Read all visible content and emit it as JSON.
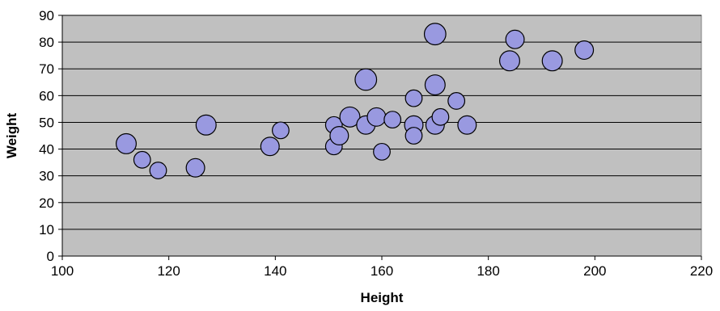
{
  "chart_data": {
    "type": "scatter",
    "xlabel": "Height",
    "ylabel": "Weight",
    "xlim": [
      100,
      220
    ],
    "ylim": [
      0,
      90
    ],
    "x_ticks": [
      100,
      120,
      140,
      160,
      180,
      200,
      220
    ],
    "y_ticks": [
      0,
      10,
      20,
      30,
      40,
      50,
      60,
      70,
      80,
      90
    ],
    "grid": "horizontal",
    "colors": {
      "plot_bg": "#c0c0c0",
      "marker_fill": "#9999e0",
      "marker_edge": "#000000",
      "grid": "#000000"
    },
    "points": [
      {
        "x": 112,
        "y": 42,
        "size": 3.0
      },
      {
        "x": 115,
        "y": 36,
        "size": 2.0
      },
      {
        "x": 118,
        "y": 32,
        "size": 2.0
      },
      {
        "x": 125,
        "y": 33,
        "size": 2.5
      },
      {
        "x": 127,
        "y": 49,
        "size": 3.0
      },
      {
        "x": 139,
        "y": 41,
        "size": 2.5
      },
      {
        "x": 141,
        "y": 47,
        "size": 2.0
      },
      {
        "x": 151,
        "y": 41,
        "size": 2.0
      },
      {
        "x": 151,
        "y": 49,
        "size": 2.0
      },
      {
        "x": 152,
        "y": 45,
        "size": 2.5
      },
      {
        "x": 154,
        "y": 52,
        "size": 3.0
      },
      {
        "x": 157,
        "y": 49,
        "size": 2.5
      },
      {
        "x": 157,
        "y": 66,
        "size": 3.5
      },
      {
        "x": 159,
        "y": 52,
        "size": 2.5
      },
      {
        "x": 160,
        "y": 39,
        "size": 2.0
      },
      {
        "x": 162,
        "y": 51,
        "size": 2.0
      },
      {
        "x": 166,
        "y": 59,
        "size": 2.0
      },
      {
        "x": 166,
        "y": 49,
        "size": 2.5
      },
      {
        "x": 166,
        "y": 45,
        "size": 2.0
      },
      {
        "x": 170,
        "y": 83,
        "size": 3.5
      },
      {
        "x": 170,
        "y": 64,
        "size": 3.0
      },
      {
        "x": 170,
        "y": 49,
        "size": 2.5
      },
      {
        "x": 171,
        "y": 52,
        "size": 2.0
      },
      {
        "x": 174,
        "y": 58,
        "size": 2.0
      },
      {
        "x": 176,
        "y": 49,
        "size": 2.5
      },
      {
        "x": 184,
        "y": 73,
        "size": 3.0
      },
      {
        "x": 185,
        "y": 81,
        "size": 2.5
      },
      {
        "x": 192,
        "y": 73,
        "size": 3.0
      },
      {
        "x": 198,
        "y": 77,
        "size": 2.5
      }
    ]
  }
}
